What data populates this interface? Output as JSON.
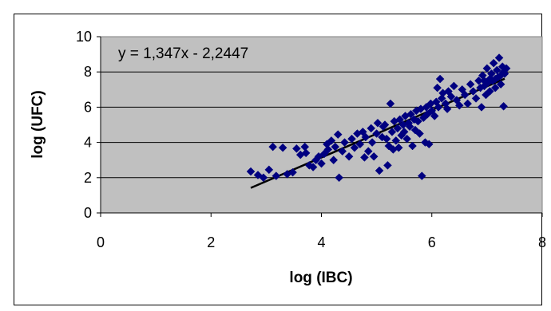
{
  "chart_data": {
    "type": "scatter",
    "title": "",
    "xlabel": "log (IBC)",
    "ylabel": "log (UFC)",
    "xlim": [
      0,
      8
    ],
    "ylim": [
      0,
      10
    ],
    "x_ticks": [
      "0",
      "2",
      "4",
      "6",
      "8"
    ],
    "y_ticks": [
      "0",
      "2",
      "4",
      "6",
      "8",
      "10"
    ],
    "grid": "horizontal",
    "plot_background": "#c0c0c0",
    "series": [
      {
        "marker": "diamond",
        "color": "#000080",
        "points": [
          [
            2.72,
            2.35
          ],
          [
            2.85,
            2.15
          ],
          [
            2.95,
            2.0
          ],
          [
            3.05,
            2.45
          ],
          [
            3.12,
            3.75
          ],
          [
            3.18,
            2.1
          ],
          [
            3.3,
            3.7
          ],
          [
            3.38,
            2.2
          ],
          [
            3.48,
            2.3
          ],
          [
            3.55,
            3.65
          ],
          [
            3.62,
            3.3
          ],
          [
            3.7,
            3.75
          ],
          [
            3.72,
            3.4
          ],
          [
            3.78,
            2.7
          ],
          [
            3.85,
            2.6
          ],
          [
            3.9,
            3.0
          ],
          [
            3.95,
            3.2
          ],
          [
            4.0,
            2.8
          ],
          [
            4.05,
            3.35
          ],
          [
            4.1,
            3.9
          ],
          [
            4.12,
            3.6
          ],
          [
            4.18,
            4.1
          ],
          [
            4.22,
            3.0
          ],
          [
            4.25,
            3.75
          ],
          [
            4.3,
            4.45
          ],
          [
            4.32,
            2.0
          ],
          [
            4.38,
            3.5
          ],
          [
            4.42,
            4.0
          ],
          [
            4.5,
            3.2
          ],
          [
            4.55,
            4.2
          ],
          [
            4.6,
            3.7
          ],
          [
            4.65,
            4.5
          ],
          [
            4.7,
            3.9
          ],
          [
            4.75,
            4.6
          ],
          [
            4.78,
            3.15
          ],
          [
            4.8,
            4.3
          ],
          [
            4.85,
            3.5
          ],
          [
            4.9,
            4.8
          ],
          [
            4.92,
            4.0
          ],
          [
            4.95,
            3.2
          ],
          [
            5.0,
            4.5
          ],
          [
            5.02,
            5.1
          ],
          [
            5.05,
            2.4
          ],
          [
            5.1,
            4.3
          ],
          [
            5.12,
            4.9
          ],
          [
            5.15,
            5.0
          ],
          [
            5.18,
            4.2
          ],
          [
            5.2,
            2.7
          ],
          [
            5.22,
            3.8
          ],
          [
            5.25,
            6.2
          ],
          [
            5.28,
            4.6
          ],
          [
            5.3,
            3.6
          ],
          [
            5.32,
            5.2
          ],
          [
            5.35,
            4.1
          ],
          [
            5.38,
            4.8
          ],
          [
            5.4,
            3.7
          ],
          [
            5.42,
            5.3
          ],
          [
            5.45,
            4.4
          ],
          [
            5.48,
            5.0
          ],
          [
            5.5,
            4.6
          ],
          [
            5.52,
            5.5
          ],
          [
            5.55,
            4.2
          ],
          [
            5.58,
            5.1
          ],
          [
            5.6,
            4.9
          ],
          [
            5.62,
            5.6
          ],
          [
            5.65,
            3.8
          ],
          [
            5.68,
            5.3
          ],
          [
            5.7,
            4.7
          ],
          [
            5.72,
            5.8
          ],
          [
            5.75,
            5.2
          ],
          [
            5.78,
            4.5
          ],
          [
            5.8,
            5.9
          ],
          [
            5.82,
            2.1
          ],
          [
            5.85,
            5.4
          ],
          [
            5.88,
            4.0
          ],
          [
            5.9,
            6.0
          ],
          [
            5.92,
            5.6
          ],
          [
            5.95,
            3.9
          ],
          [
            5.98,
            6.2
          ],
          [
            6.0,
            5.8
          ],
          [
            6.05,
            5.5
          ],
          [
            6.08,
            6.3
          ],
          [
            6.1,
            7.1
          ],
          [
            6.12,
            6.0
          ],
          [
            6.15,
            7.6
          ],
          [
            6.18,
            6.5
          ],
          [
            6.2,
            6.8
          ],
          [
            6.25,
            6.2
          ],
          [
            6.28,
            5.9
          ],
          [
            6.3,
            6.9
          ],
          [
            6.35,
            6.6
          ],
          [
            6.4,
            7.2
          ],
          [
            6.45,
            6.4
          ],
          [
            6.5,
            6.1
          ],
          [
            6.55,
            7.0
          ],
          [
            6.6,
            6.7
          ],
          [
            6.65,
            6.2
          ],
          [
            6.7,
            7.3
          ],
          [
            6.75,
            6.9
          ],
          [
            6.8,
            6.5
          ],
          [
            6.85,
            7.5
          ],
          [
            6.88,
            7.1
          ],
          [
            6.9,
            6.0
          ],
          [
            6.92,
            7.8
          ],
          [
            6.95,
            7.2
          ],
          [
            6.98,
            6.7
          ],
          [
            7.0,
            8.2
          ],
          [
            7.02,
            7.4
          ],
          [
            7.05,
            6.9
          ],
          [
            7.08,
            7.9
          ],
          [
            7.1,
            7.5
          ],
          [
            7.12,
            8.5
          ],
          [
            7.15,
            7.1
          ],
          [
            7.18,
            8.1
          ],
          [
            7.2,
            7.7
          ],
          [
            7.22,
            8.8
          ],
          [
            7.25,
            7.3
          ],
          [
            7.28,
            8.3
          ],
          [
            7.3,
            6.05
          ],
          [
            7.32,
            7.9
          ],
          [
            7.3,
            8.0
          ],
          [
            7.25,
            7.8
          ],
          [
            7.15,
            7.6
          ],
          [
            7.35,
            8.2
          ],
          [
            7.05,
            7.6
          ],
          [
            6.95,
            7.5
          ]
        ]
      }
    ],
    "trendline": {
      "slope": 1.347,
      "intercept": -2.2447,
      "x_range": [
        2.72,
        7.32
      ],
      "color": "#000000",
      "equation": "y = 1,347x - 2,2447"
    }
  }
}
